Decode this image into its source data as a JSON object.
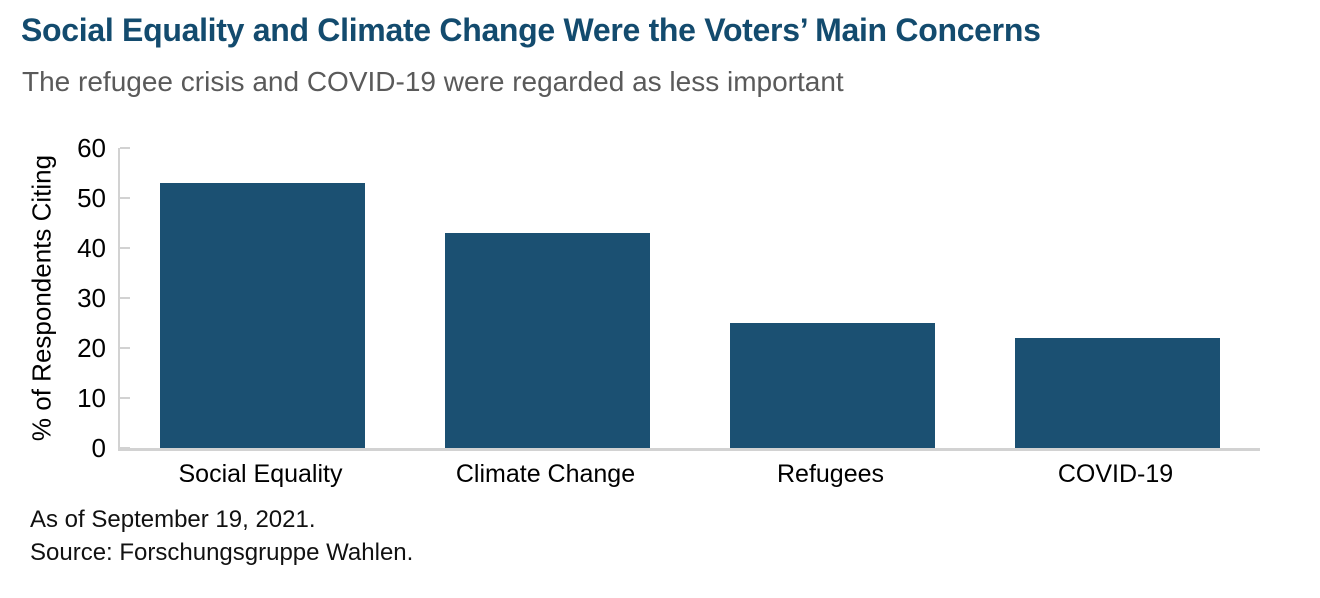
{
  "header": {
    "title": "Social Equality and Climate Change Were the Voters’ Main Concerns",
    "subtitle": "The refugee crisis and COVID-19 were regarded as less important"
  },
  "chart_data": {
    "type": "bar",
    "categories": [
      "Social Equality",
      "Climate Change",
      "Refugees",
      "COVID-19"
    ],
    "values": [
      53,
      43,
      25,
      22
    ],
    "title": "Social Equality and Climate Change Were the Voters’ Main Concerns",
    "subtitle": "The refugee crisis and COVID-19 were regarded as less important",
    "xlabel": "",
    "ylabel": "% of Respondents Citing",
    "ylim": [
      0,
      60
    ],
    "yticks": [
      0,
      10,
      20,
      30,
      40,
      50,
      60
    ],
    "grid": "off",
    "legend": "none",
    "bar_color": "#1b5072"
  },
  "colors": {
    "title": "#134b6e",
    "subtitle": "#5a5a5a",
    "bar": "#1b5072",
    "axis_line": "#d2d2d2",
    "axis_text": "#000000"
  },
  "footer": {
    "line1": "As of September 19, 2021.",
    "line2": "Source: Forschungsgruppe Wahlen."
  }
}
